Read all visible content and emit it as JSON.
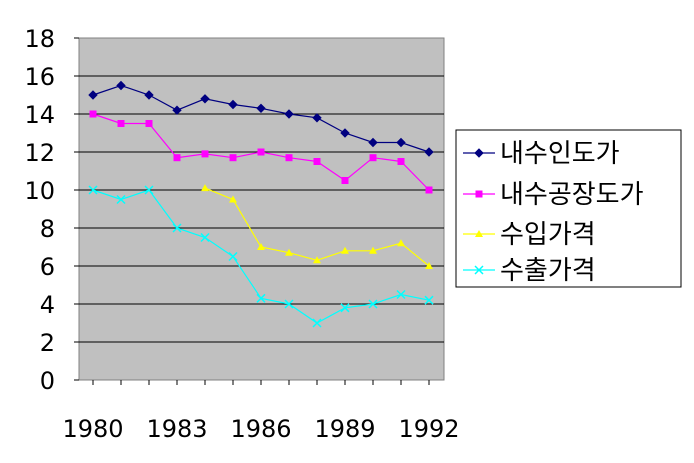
{
  "chart_data": {
    "type": "line",
    "x": [
      1980,
      1981,
      1982,
      1983,
      1984,
      1985,
      1986,
      1987,
      1988,
      1989,
      1990,
      1991,
      1992
    ],
    "x_tick_labels": [
      "1980",
      "1983",
      "1986",
      "1989",
      "1992"
    ],
    "ylim": [
      0,
      18
    ],
    "y_ticks": [
      0,
      2,
      4,
      6,
      8,
      10,
      12,
      14,
      16,
      18
    ],
    "plot_background": "#c0c0c0",
    "grid": true,
    "legend_position": "right",
    "series": [
      {
        "name": "내수인도가",
        "color": "#000080",
        "marker": "diamond",
        "values": [
          15.0,
          15.5,
          15.0,
          14.2,
          14.8,
          14.5,
          14.3,
          14.0,
          13.8,
          13.0,
          12.5,
          12.5,
          12.0
        ]
      },
      {
        "name": "내수공장도가",
        "color": "#ff00ff",
        "marker": "square",
        "values": [
          14.0,
          13.5,
          13.5,
          11.7,
          11.9,
          11.7,
          12.0,
          11.7,
          11.5,
          10.5,
          11.7,
          11.5,
          10.0
        ]
      },
      {
        "name": "수입가격",
        "color": "#ffff00",
        "marker": "triangle",
        "values": [
          null,
          null,
          null,
          null,
          10.1,
          9.5,
          7.0,
          6.7,
          6.3,
          6.8,
          6.8,
          7.2,
          6.0
        ]
      },
      {
        "name": "수출가격",
        "color": "#00ffff",
        "marker": "x",
        "values": [
          10.0,
          9.5,
          10.0,
          8.0,
          7.5,
          6.5,
          4.3,
          4.0,
          3.0,
          3.8,
          4.0,
          4.5,
          4.2
        ]
      }
    ]
  }
}
